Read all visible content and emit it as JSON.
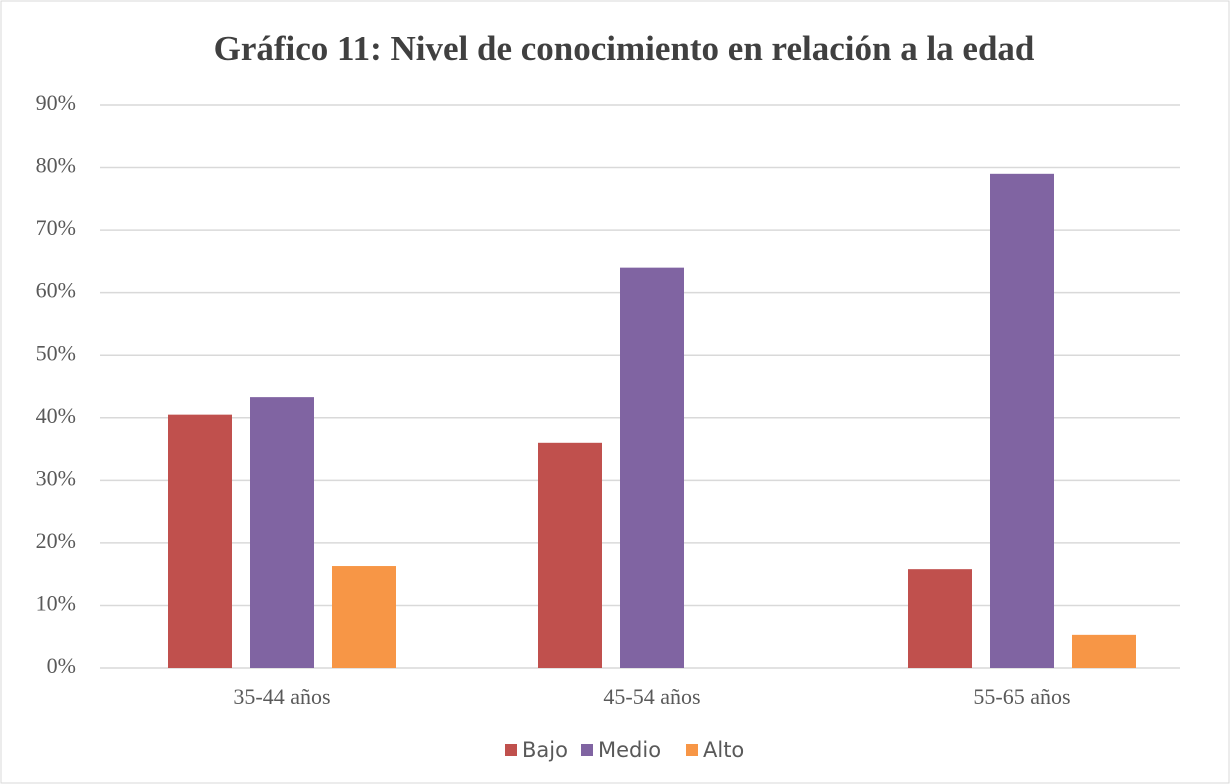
{
  "chart_data": {
    "type": "bar",
    "title": "Gráfico 11: Nivel de conocimiento en relación a la edad",
    "categories": [
      "35-44 años",
      "45-54 años",
      "55-65 años"
    ],
    "series": [
      {
        "name": "Bajo",
        "color": "#c0504d",
        "values": [
          40.5,
          36,
          15.8
        ]
      },
      {
        "name": "Medio",
        "color": "#8064a2",
        "values": [
          43.3,
          64,
          79
        ]
      },
      {
        "name": "Alto",
        "color": "#f79646",
        "values": [
          16.3,
          0,
          5.3
        ]
      }
    ],
    "ylim": [
      0,
      90
    ],
    "yticks": [
      {
        "value": 0,
        "label": "0%"
      },
      {
        "value": 10,
        "label": "10%"
      },
      {
        "value": 20,
        "label": "20%"
      },
      {
        "value": 30,
        "label": "30%"
      },
      {
        "value": 40,
        "label": "40%"
      },
      {
        "value": 50,
        "label": "50%"
      },
      {
        "value": 60,
        "label": "60%"
      },
      {
        "value": 70,
        "label": "70%"
      },
      {
        "value": 80,
        "label": "80%"
      },
      {
        "value": 90,
        "label": "90%"
      }
    ],
    "grid": true,
    "legend": "bottom"
  }
}
